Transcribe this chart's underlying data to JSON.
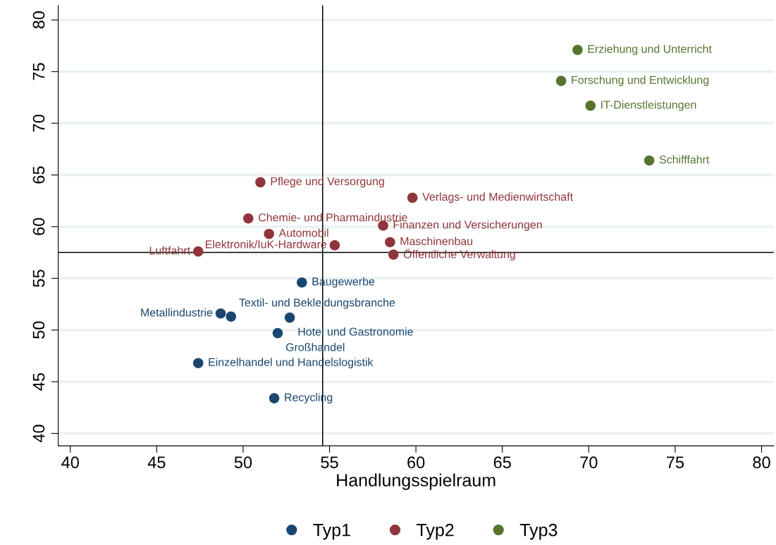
{
  "chart_data": {
    "type": "scatter",
    "xlabel": "Handlungsspielraum",
    "xlim": [
      39.3,
      80.7
    ],
    "ylim": [
      38.8,
      81.4
    ],
    "xticks": [
      40,
      45,
      50,
      55,
      60,
      65,
      70,
      75,
      80
    ],
    "yticks": [
      40,
      45,
      50,
      55,
      60,
      65,
      70,
      75,
      80
    ],
    "grid": "y",
    "legend": "bottom",
    "marker": "circle",
    "series": [
      {
        "name": "Typ1",
        "color": "#1a476f",
        "x": [
          53.4,
          48.7,
          49.3,
          52.7,
          52.0,
          47.4,
          51.8
        ],
        "values": [
          54.6,
          51.6,
          51.3,
          51.2,
          49.7,
          46.8,
          43.4
        ]
      },
      {
        "name": "Typ2",
        "color": "#90353b",
        "x": [
          51.0,
          59.8,
          50.3,
          58.1,
          51.5,
          55.3,
          58.5,
          47.4,
          58.7
        ],
        "values": [
          64.3,
          62.8,
          60.8,
          60.1,
          59.3,
          58.2,
          58.5,
          57.6,
          57.3
        ]
      },
      {
        "name": "Typ3",
        "color": "#55752f",
        "x": [
          69.35,
          68.4,
          70.1,
          73.5
        ],
        "values": [
          77.1,
          74.1,
          71.7,
          66.4
        ]
      }
    ],
    "ref_lines": [
      {
        "axis": "x",
        "value": 54.6,
        "color": "#000000"
      },
      {
        "axis": "y",
        "value": 57.5,
        "color": "#000000"
      }
    ],
    "annotations": [
      {
        "text": "Baugewerbe",
        "x": 53.4,
        "y": 54.6
      },
      {
        "text": "Metallindustrie",
        "x": 48.7,
        "y": 51.6
      },
      {
        "text": "Textil- und Bekleidungsbranche",
        "x": 49.3,
        "y": 51.3
      },
      {
        "text": "Hotel und Gastronomie",
        "x": 52.7,
        "y": 51.2
      },
      {
        "text": "Großhandel",
        "x": 52.0,
        "y": 49.7
      },
      {
        "text": "Einzelhandel und Handelslogistik",
        "x": 47.4,
        "y": 46.8
      },
      {
        "text": "Recycling",
        "x": 51.8,
        "y": 43.4
      },
      {
        "text": "Pflege und Versorgung",
        "x": 51.0,
        "y": 64.3
      },
      {
        "text": "Verlags- und Medienwirtschaft",
        "x": 59.8,
        "y": 62.8
      },
      {
        "text": "Chemie- und Pharmaindustrie",
        "x": 50.3,
        "y": 60.8
      },
      {
        "text": "Finanzen und Versicherungen",
        "x": 58.1,
        "y": 60.1
      },
      {
        "text": "Automobil",
        "x": 51.5,
        "y": 59.3
      },
      {
        "text": "Elektronik/IuK-Hardware",
        "x": 55.3,
        "y": 58.2
      },
      {
        "text": "Maschinenbau",
        "x": 58.5,
        "y": 58.5
      },
      {
        "text": "Luftfahrt",
        "x": 47.4,
        "y": 57.6
      },
      {
        "text": "Öffentliche Verwaltung",
        "x": 58.7,
        "y": 57.3
      },
      {
        "text": "Erziehung und Unterricht",
        "x": 69.35,
        "y": 77.1
      },
      {
        "text": "Forschung und Entwicklung",
        "x": 68.4,
        "y": 74.1
      },
      {
        "text": "IT-Dienstleistungen",
        "x": 70.1,
        "y": 71.7
      },
      {
        "text": "Schifffahrt",
        "x": 73.5,
        "y": 66.4
      }
    ]
  }
}
